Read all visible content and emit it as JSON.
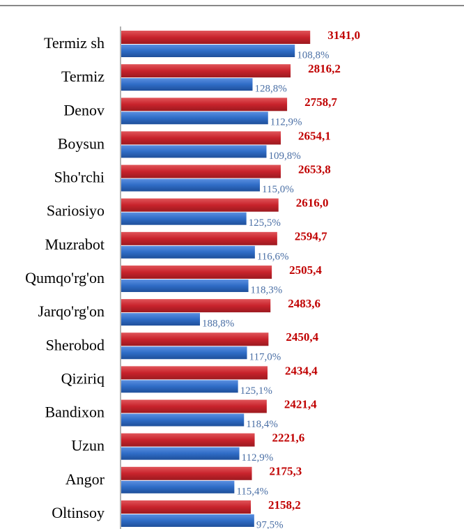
{
  "chart_data": {
    "type": "bar",
    "orientation": "horizontal",
    "categories": [
      "Termiz sh",
      "Termiz",
      "Denov",
      "Boysun",
      "Sho'rchi",
      "Sariosiyo",
      "Muzrabot",
      "Qumqo'rg'on",
      "Jarqo'rg'on",
      "Sherobod",
      "Qiziriq",
      "Bandixon",
      "Uzun",
      "Angor",
      "Oltinsoy"
    ],
    "series": [
      {
        "color": "#c8232c",
        "label_color": "#c00000",
        "values": [
          3141.0,
          2816.2,
          2758.7,
          2654.1,
          2653.8,
          2616.0,
          2594.7,
          2505.4,
          2483.6,
          2450.4,
          2434.4,
          2421.4,
          2221.6,
          2175.3,
          2158.2
        ],
        "value_labels": [
          "3141,0",
          "2816,2",
          "2758,7",
          "2654,1",
          "2653,8",
          "2616,0",
          "2594,7",
          "2505,4",
          "2483,6",
          "2450,4",
          "2434,4",
          "2421,4",
          "2221,6",
          "2175,3",
          "2158,2"
        ]
      },
      {
        "color": "#2f6cc6",
        "label_color": "#4a6fa5",
        "values": [
          2886.9,
          2186.5,
          2443.5,
          2417.2,
          2307.7,
          2084.5,
          2225.3,
          2117.8,
          1315.5,
          2094.4,
          1946.0,
          2045.1,
          1967.8,
          1885.0,
          2213.5
        ]
      }
    ],
    "annotations": [
      "108,8%",
      "128,8%",
      "112,9%",
      "109,8%",
      "115,0%",
      "125,5%",
      "116,6%",
      "118,3%",
      "188,8%",
      "117,0%",
      "125,1%",
      "118,4%",
      "112,9%",
      "115,4%",
      "97,5%"
    ],
    "xlim": [
      0,
      3300
    ]
  }
}
